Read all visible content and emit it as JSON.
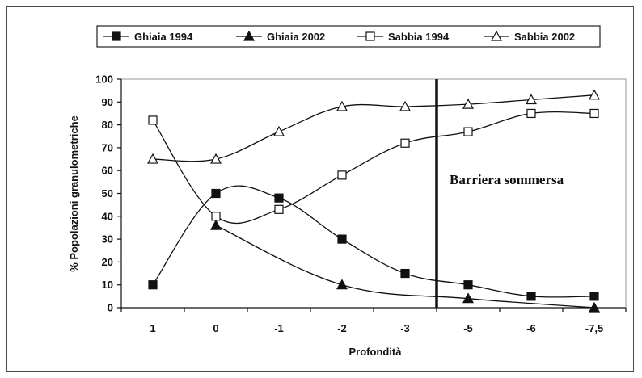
{
  "chart_data": {
    "type": "line",
    "categories": [
      "1",
      "0",
      "-1",
      "-2",
      "-3",
      "-5",
      "-6",
      "-7,5"
    ],
    "xlabel": "Profondità",
    "ylabel": "% Popolazioni granulometriche",
    "ylim": [
      0,
      100
    ],
    "yticks": [
      0,
      10,
      20,
      30,
      40,
      50,
      60,
      70,
      80,
      90,
      100
    ],
    "grid": false,
    "legend": "top",
    "series": [
      {
        "name": "Ghiaia 1994",
        "marker": "square-filled",
        "values": [
          10,
          50,
          48,
          30,
          15,
          10,
          5,
          5
        ]
      },
      {
        "name": "Ghiaia 2002",
        "marker": "triangle-filled",
        "values": [
          null,
          36,
          null,
          10,
          null,
          4,
          null,
          0
        ]
      },
      {
        "name": "Sabbia 1994",
        "marker": "square-open",
        "values": [
          82,
          40,
          43,
          58,
          72,
          77,
          85,
          85
        ]
      },
      {
        "name": "Sabbia 2002",
        "marker": "triangle-open",
        "values": [
          65,
          65,
          77,
          88,
          88,
          89,
          91,
          93
        ]
      }
    ],
    "annotations": [
      {
        "text": "Barriera sommersa",
        "between_categories": [
          "-3",
          "-5"
        ]
      }
    ]
  }
}
